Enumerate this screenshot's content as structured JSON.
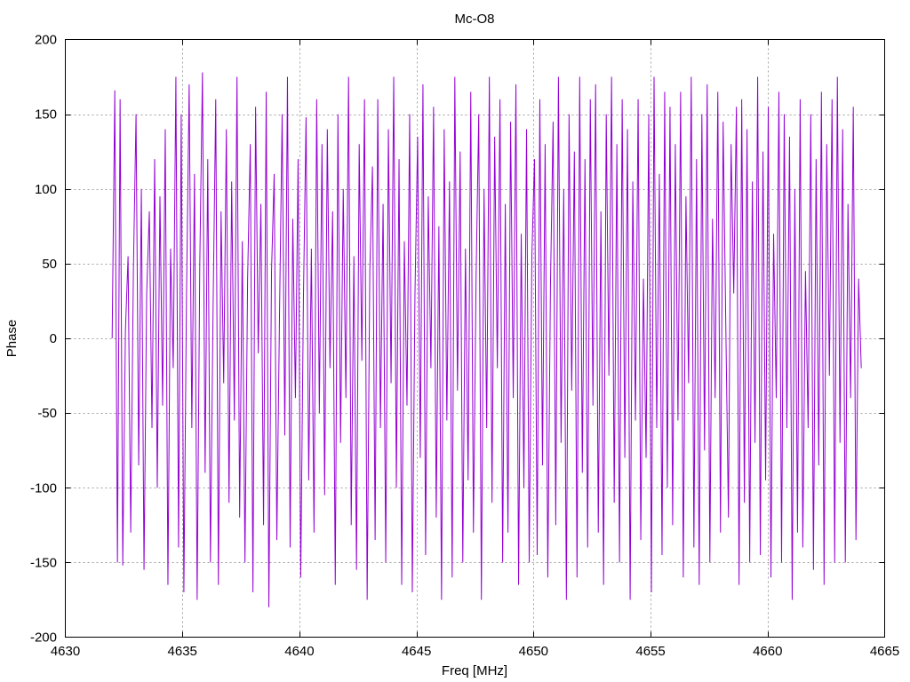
{
  "chart_data": {
    "type": "line",
    "title": "Mc-O8",
    "xlabel": "Freq [MHz]",
    "ylabel": "Phase",
    "xlim": [
      4630,
      4665
    ],
    "ylim": [
      -200,
      200
    ],
    "x_ticks": [
      4630,
      4635,
      4640,
      4645,
      4650,
      4655,
      4660,
      4665
    ],
    "y_ticks": [
      -200,
      -150,
      -100,
      -50,
      0,
      50,
      100,
      150,
      200
    ],
    "grid": true,
    "legend": "none",
    "series": [
      {
        "color": "#9400d3",
        "x_start": 4632.0,
        "x_end": 4664.0,
        "values": [
          0,
          166,
          -150,
          160,
          -152,
          5,
          55,
          -130,
          45,
          150,
          -85,
          100,
          -155,
          30,
          85,
          -60,
          120,
          -100,
          95,
          -45,
          140,
          -165,
          60,
          -20,
          175,
          -140,
          150,
          -170,
          30,
          170,
          -60,
          110,
          -175,
          50,
          178,
          -90,
          120,
          -150,
          20,
          160,
          -165,
          85,
          -30,
          140,
          -110,
          105,
          -55,
          175,
          -120,
          65,
          -150,
          40,
          130,
          -170,
          155,
          -10,
          90,
          -125,
          165,
          -180,
          45,
          110,
          -135,
          15,
          150,
          -65,
          175,
          -140,
          80,
          -40,
          120,
          -160,
          25,
          148,
          -95,
          60,
          -130,
          160,
          -50,
          130,
          -105,
          140,
          -20,
          85,
          -165,
          150,
          -70,
          100,
          -40,
          175,
          -125,
          55,
          -155,
          130,
          -15,
          160,
          -175,
          45,
          115,
          -135,
          160,
          -60,
          90,
          -150,
          140,
          -30,
          175,
          -100,
          120,
          -165,
          65,
          -45,
          150,
          -170,
          30,
          135,
          -80,
          170,
          -145,
          95,
          -20,
          155,
          -120,
          75,
          -175,
          140,
          -55,
          105,
          -160,
          175,
          -35,
          125,
          -150,
          60,
          -95,
          165,
          -130,
          40,
          150,
          -175,
          100,
          -60,
          175,
          -110,
          135,
          -20,
          160,
          -150,
          90,
          -130,
          145,
          -40,
          170,
          -165,
          70,
          -100,
          140,
          -150,
          55,
          120,
          -145,
          160,
          -85,
          130,
          -160,
          35,
          145,
          -125,
          175,
          -70,
          100,
          -175,
          150,
          -35,
          125,
          -160,
          175,
          -90,
          120,
          -140,
          160,
          -45,
          170,
          -130,
          85,
          -165,
          150,
          -25,
          175,
          -110,
          130,
          -150,
          160,
          -80,
          140,
          -175,
          105,
          -55,
          160,
          -135,
          40,
          -80,
          150,
          -170,
          175,
          -60,
          110,
          -145,
          165,
          -100,
          155,
          -125,
          130,
          -55,
          165,
          -160,
          95,
          -30,
          175,
          -140,
          120,
          -165,
          150,
          -75,
          170,
          -150,
          80,
          -40,
          165,
          -130,
          145,
          10,
          -120,
          130,
          30,
          155,
          -165,
          160,
          -110,
          140,
          -150,
          105,
          -70,
          175,
          -145,
          125,
          -95,
          155,
          -160,
          70,
          -40,
          165,
          -150,
          150,
          -60,
          135,
          -175,
          100,
          -130,
          160,
          -140,
          45,
          -60,
          150,
          -155,
          120,
          -85,
          165,
          -165,
          130,
          -25,
          160,
          -150,
          175,
          -70,
          140,
          -150,
          90,
          -40,
          155,
          -135,
          40,
          -20
        ]
      }
    ]
  }
}
